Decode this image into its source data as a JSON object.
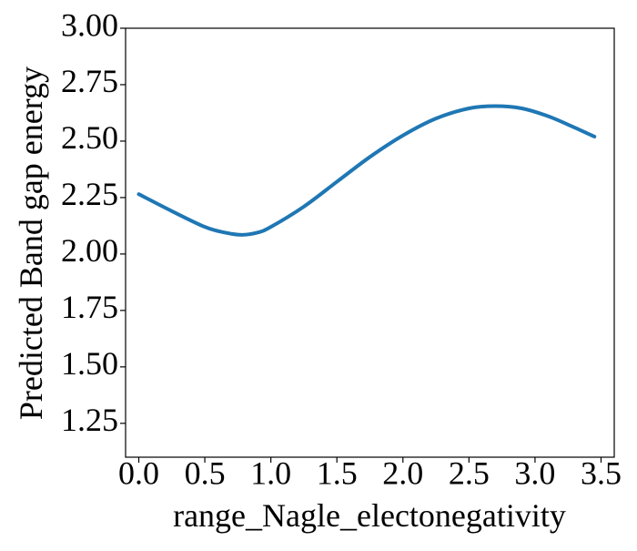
{
  "chart_data": {
    "type": "line",
    "title": "",
    "xlabel": "range_Nagle_electonegativity",
    "ylabel": "Predicted Band gap energy",
    "xlim": [
      -0.1,
      3.6
    ],
    "ylim": [
      1.1,
      3.0
    ],
    "xticks": [
      0.0,
      0.5,
      1.0,
      1.5,
      2.0,
      2.5,
      3.0,
      3.5
    ],
    "xtick_labels": [
      "0.0",
      "0.5",
      "1.0",
      "1.5",
      "2.0",
      "2.5",
      "3.0",
      "3.5"
    ],
    "yticks": [
      1.25,
      1.5,
      1.75,
      2.0,
      2.25,
      2.5,
      2.75,
      3.0
    ],
    "ytick_labels": [
      "1.25",
      "1.50",
      "1.75",
      "2.00",
      "2.25",
      "2.50",
      "2.75",
      "3.00"
    ],
    "grid": false,
    "legend": "none",
    "series": [
      {
        "color": "#1f77b4",
        "x": [
          0.0,
          0.25,
          0.5,
          0.65,
          0.78,
          0.9,
          1.0,
          1.25,
          1.5,
          1.75,
          2.0,
          2.25,
          2.5,
          2.7,
          2.9,
          3.1,
          3.3,
          3.45
        ],
        "y": [
          2.265,
          2.19,
          2.12,
          2.095,
          2.085,
          2.095,
          2.12,
          2.21,
          2.32,
          2.43,
          2.525,
          2.6,
          2.645,
          2.655,
          2.645,
          2.61,
          2.56,
          2.52
        ]
      }
    ]
  }
}
